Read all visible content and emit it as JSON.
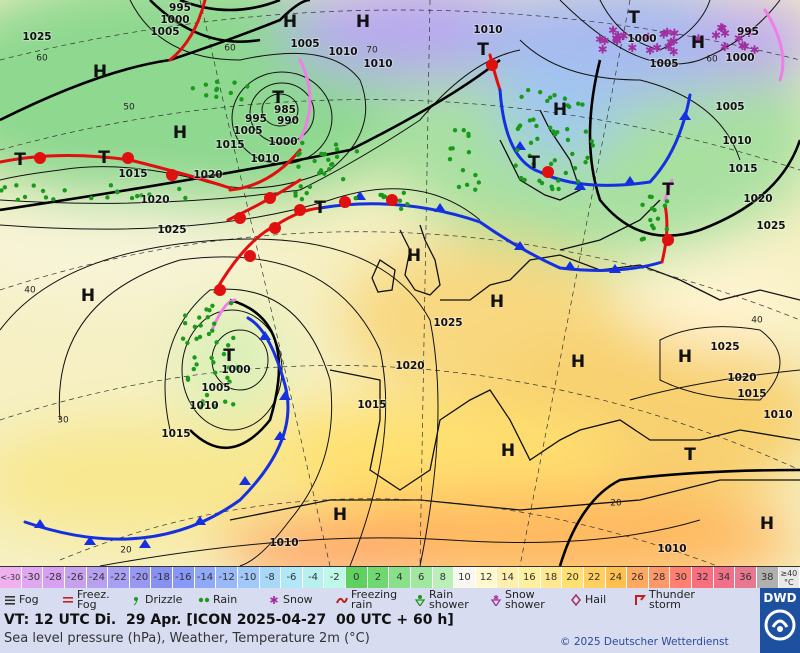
{
  "map": {
    "isobar_labels": [
      "1025",
      "995",
      "1005",
      "1000",
      "1005",
      "1010",
      "1010",
      "985",
      "990",
      "995",
      "1005",
      "1000",
      "1015",
      "1010",
      "1015",
      "1020",
      "1020",
      "1025",
      "1010",
      "1000",
      "1005",
      "995",
      "1000",
      "1005",
      "1010",
      "1015",
      "1020",
      "1025",
      "1025",
      "1020",
      "1015",
      "1000",
      "1005",
      "1010",
      "1015",
      "1025",
      "1020",
      "1015",
      "1010",
      "1010",
      "1010"
    ],
    "latitude_labels": [
      "60",
      "60",
      "60",
      "70",
      "50",
      "40",
      "40",
      "30",
      "20",
      "20"
    ],
    "pressure_centers": [
      "H",
      "H",
      "H",
      "H",
      "H",
      "H",
      "H",
      "H",
      "H",
      "H",
      "H",
      "H",
      "H",
      "H",
      "T",
      "T",
      "T",
      "T",
      "T",
      "T",
      "T",
      "T",
      "T",
      "T"
    ]
  },
  "temperature_scale": {
    "labels": [
      "<-30",
      "-30",
      "-28",
      "-26",
      "-24",
      "-22",
      "-20",
      "-18",
      "-16",
      "-14",
      "-12",
      "-10",
      "-8",
      "-6",
      "-4",
      "-2",
      "0",
      "2",
      "4",
      "6",
      "8",
      "10",
      "12",
      "14",
      "16",
      "18",
      "20",
      "22",
      "24",
      "26",
      "28",
      "30",
      "32",
      "34",
      "36",
      "38",
      "≥40 °C"
    ]
  },
  "weather_legend": [
    "Fog",
    "Freez. Fog",
    "Drizzle",
    "Rain",
    "Snow",
    "Freezing rain",
    "Rain shower",
    "Snow shower",
    "Hail",
    "Thunder storm"
  ],
  "footer": {
    "valid_time": "VT: 12 UTC Di.  29 Apr. [ICON 2025-04-27  00 UTC + 60 h]",
    "description": "Sea level pressure (hPa), Weather, Temperature 2m (°C)",
    "copyright": "© 2025 Deutscher Wetterdienst",
    "logo": "DWD"
  }
}
